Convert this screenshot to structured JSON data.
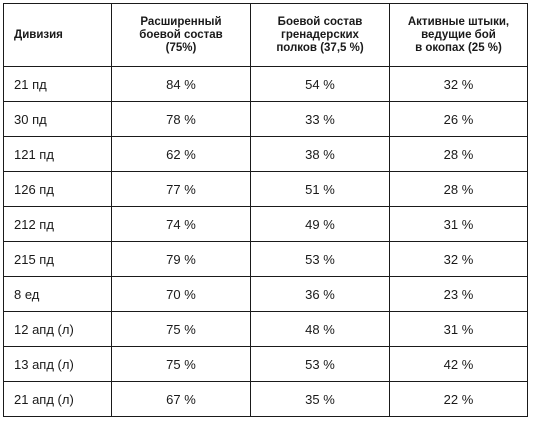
{
  "table": {
    "headers": {
      "division": "Дивизия",
      "extended": [
        "Расширенный",
        "боевой состав",
        "(75%)"
      ],
      "grenadier": [
        "Боевой состав",
        "гренадерских",
        "полков (37,5 %)"
      ],
      "bayonets": [
        "Активные штыки,",
        "ведущие бой",
        "в окопах (25 %)"
      ]
    },
    "rows": [
      {
        "division": "21 пд",
        "extended": "84 %",
        "grenadier": "54 %",
        "bayonets": "32 %"
      },
      {
        "division": "30 пд",
        "extended": "78 %",
        "grenadier": "33 %",
        "bayonets": "26 %"
      },
      {
        "division": "121 пд",
        "extended": "62 %",
        "grenadier": "38 %",
        "bayonets": "28 %"
      },
      {
        "division": "126 пд",
        "extended": "77 %",
        "grenadier": "51 %",
        "bayonets": "28 %"
      },
      {
        "division": "212 пд",
        "extended": "74 %",
        "grenadier": "49 %",
        "bayonets": "31 %"
      },
      {
        "division": "215 пд",
        "extended": "79 %",
        "grenadier": "53 %",
        "bayonets": "32 %"
      },
      {
        "division": "8 ед",
        "extended": "70 %",
        "grenadier": "36 %",
        "bayonets": "23 %"
      },
      {
        "division": "12 апд (л)",
        "extended": "75 %",
        "grenadier": "48 %",
        "bayonets": "31 %"
      },
      {
        "division": "13 апд (л)",
        "extended": "75 %",
        "grenadier": "53 %",
        "bayonets": "42 %"
      },
      {
        "division": "21 апд (л)",
        "extended": "67 %",
        "grenadier": "35 %",
        "bayonets": "22 %"
      }
    ]
  }
}
